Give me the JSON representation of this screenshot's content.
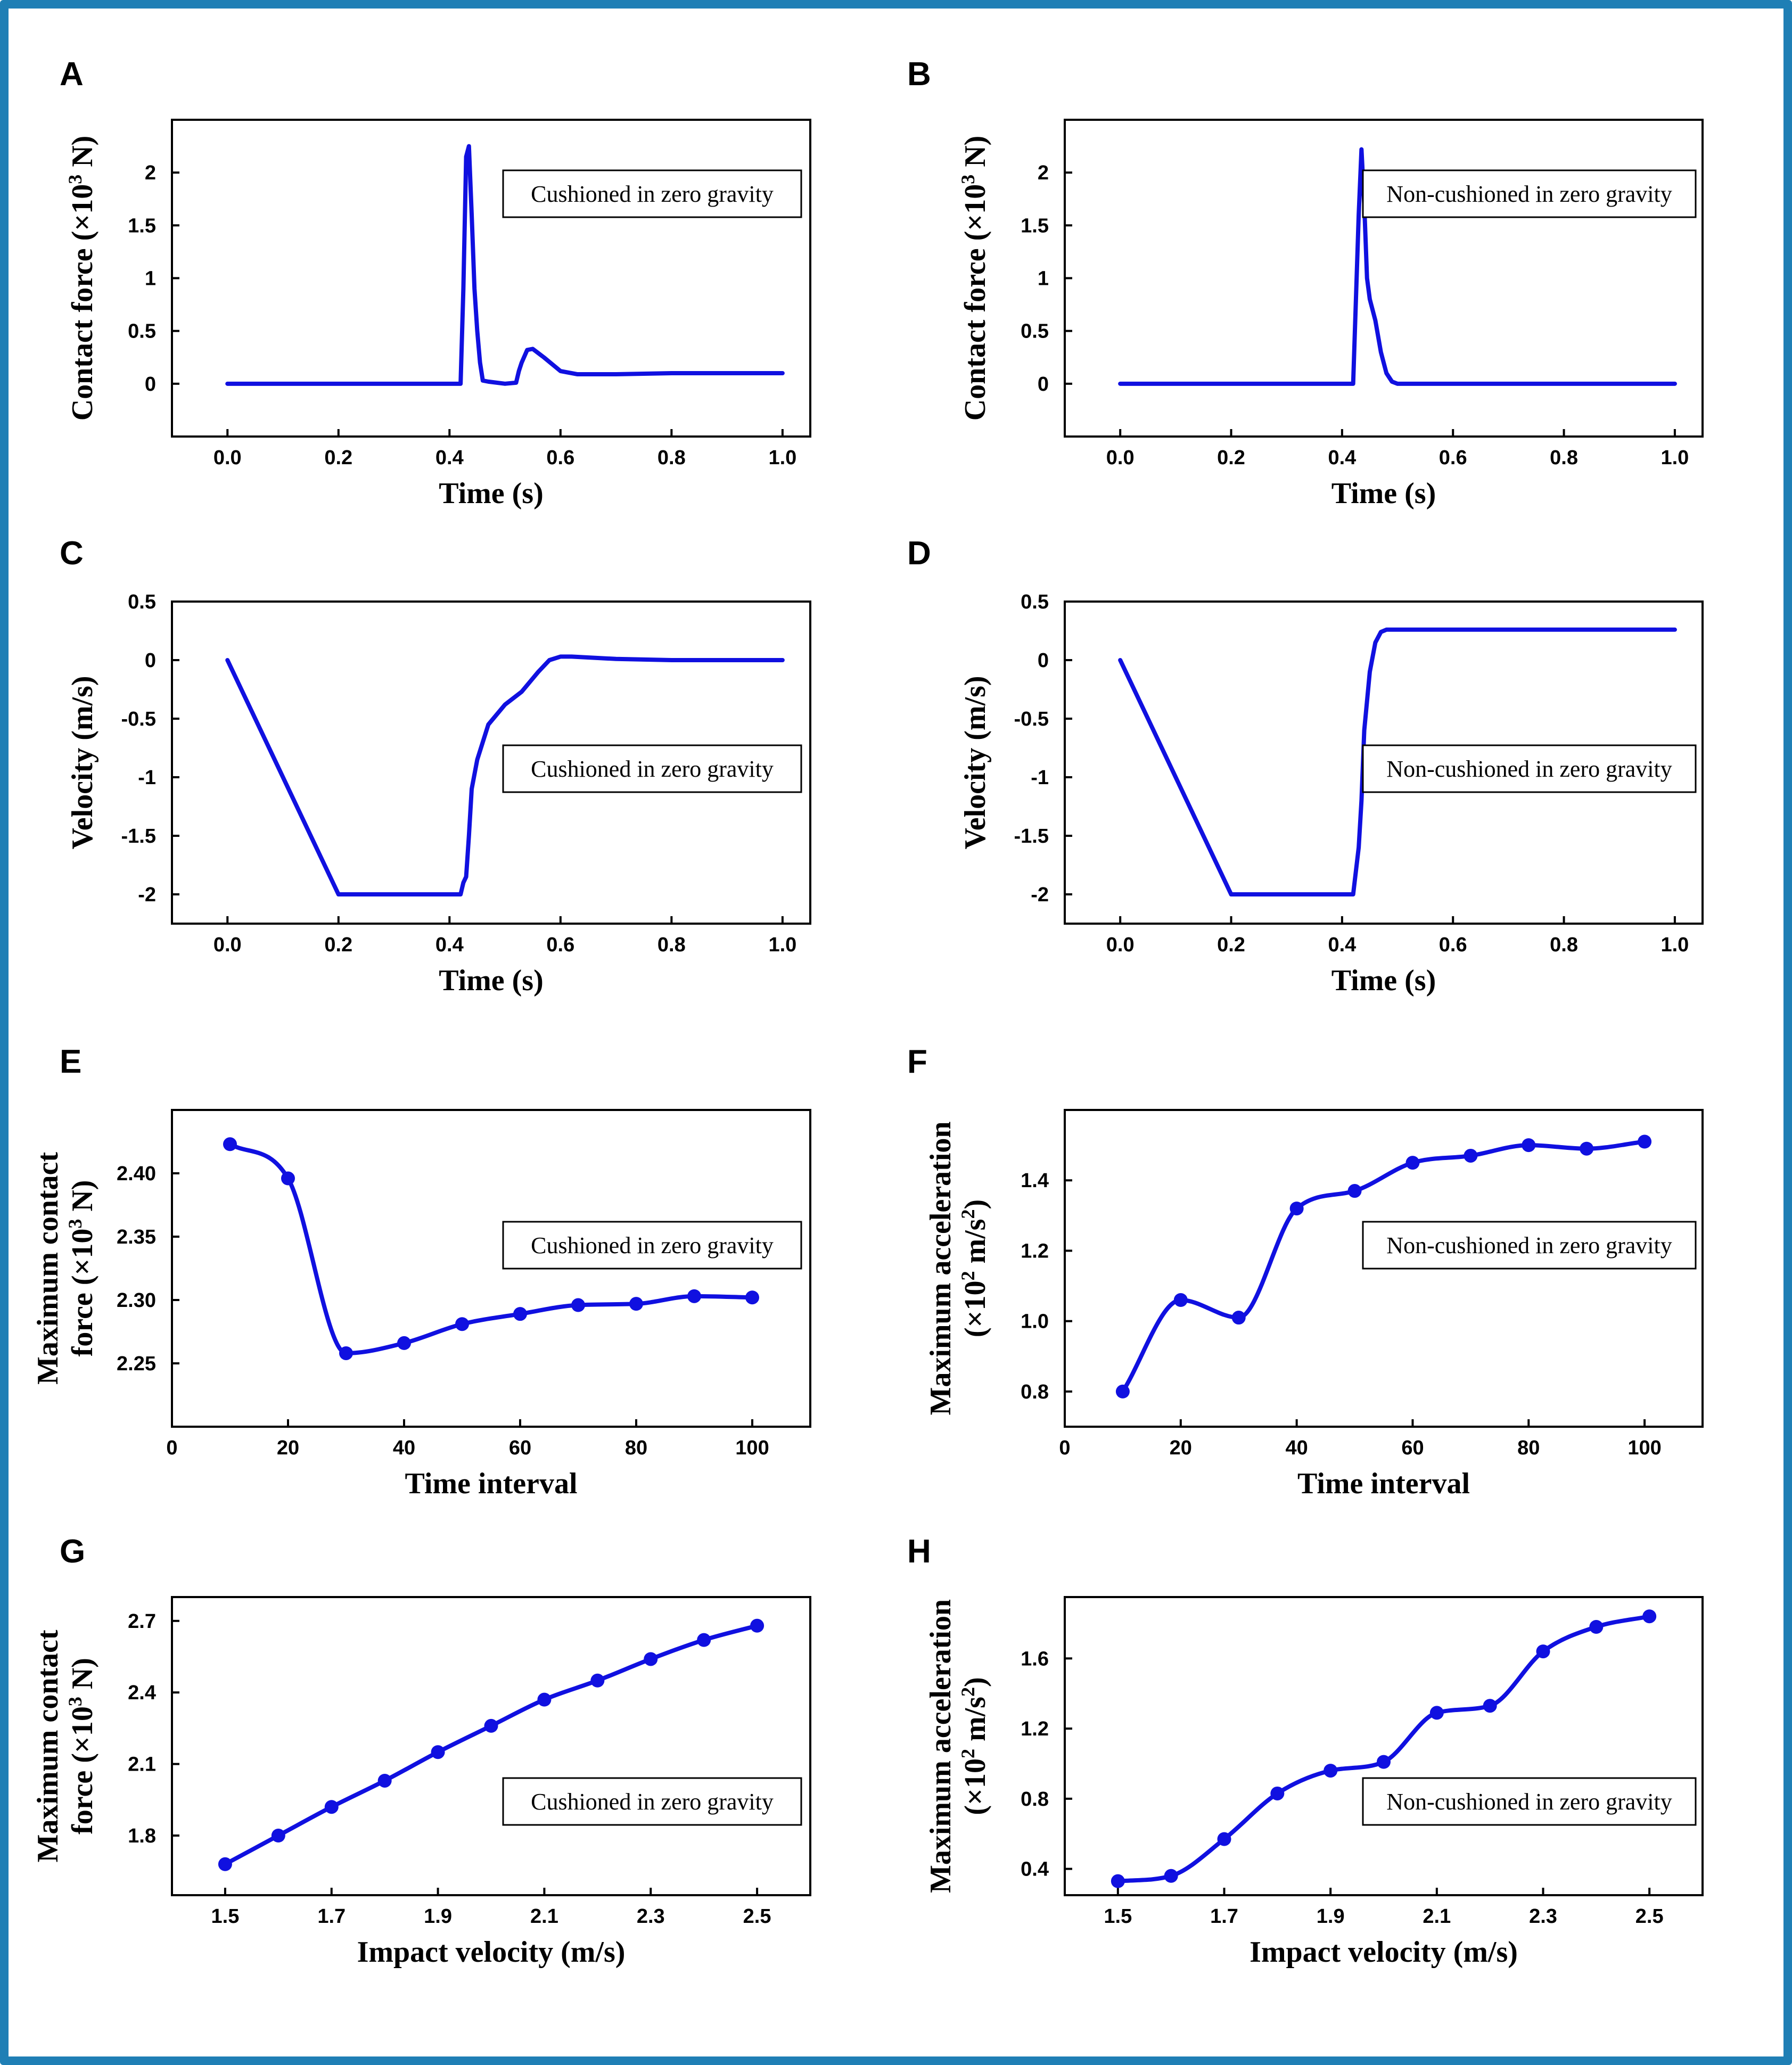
{
  "figure": {
    "border_color": "#1f7fb5",
    "line_color": "#1010e0"
  },
  "chart_data": [
    {
      "panel": "A",
      "type": "line",
      "xlabel": "Time (s)",
      "ylabel": "Contact force (×10",
      "ylabel_sup": "3",
      "ylabel_end": " N)",
      "legend": "Cushioned in zero gravity",
      "xlim": [
        -0.1,
        1.05
      ],
      "ylim": [
        -0.5,
        2.5
      ],
      "xticks": [
        0.0,
        0.2,
        0.4,
        0.6,
        0.8,
        1.0
      ],
      "xtick_labels": [
        "0.0",
        "0.2",
        "0.4",
        "0.6",
        "0.8",
        "1.0"
      ],
      "yticks": [
        0,
        0.5,
        1,
        1.5,
        2
      ],
      "ytick_labels": [
        "0",
        "0.5",
        "1",
        "1.5",
        "2"
      ],
      "series": [
        {
          "name": "Cushioned in zero gravity",
          "x": [
            0.0,
            0.2,
            0.42,
            0.425,
            0.43,
            0.435,
            0.44,
            0.445,
            0.45,
            0.455,
            0.46,
            0.47,
            0.5,
            0.52,
            0.525,
            0.53,
            0.54,
            0.55,
            0.57,
            0.6,
            0.63,
            0.7,
            0.8,
            0.9,
            1.0
          ],
          "y": [
            0,
            0,
            0,
            0.9,
            2.15,
            2.25,
            1.6,
            0.9,
            0.5,
            0.2,
            0.03,
            0.02,
            0.0,
            0.01,
            0.12,
            0.2,
            0.32,
            0.33,
            0.25,
            0.12,
            0.09,
            0.09,
            0.1,
            0.1,
            0.1
          ]
        }
      ]
    },
    {
      "panel": "B",
      "type": "line",
      "xlabel": "Time (s)",
      "ylabel": "Contact force (×10",
      "ylabel_sup": "3",
      "ylabel_end": " N)",
      "legend": "Non-cushioned in zero gravity",
      "xlim": [
        -0.1,
        1.05
      ],
      "ylim": [
        -0.5,
        2.5
      ],
      "xticks": [
        0.0,
        0.2,
        0.4,
        0.6,
        0.8,
        1.0
      ],
      "xtick_labels": [
        "0.0",
        "0.2",
        "0.4",
        "0.6",
        "0.8",
        "1.0"
      ],
      "yticks": [
        0,
        0.5,
        1,
        1.5,
        2
      ],
      "ytick_labels": [
        "0",
        "0.5",
        "1",
        "1.5",
        "2"
      ],
      "series": [
        {
          "name": "Non-cushioned in zero gravity",
          "x": [
            0.0,
            0.42,
            0.43,
            0.435,
            0.44,
            0.445,
            0.45,
            0.46,
            0.47,
            0.48,
            0.49,
            0.5,
            0.6,
            0.8,
            1.0
          ],
          "y": [
            0,
            0,
            1.6,
            2.22,
            1.7,
            1.0,
            0.8,
            0.6,
            0.3,
            0.1,
            0.02,
            0,
            0,
            0,
            0
          ]
        }
      ]
    },
    {
      "panel": "C",
      "type": "line",
      "xlabel": "Time (s)",
      "ylabel": "Velocity  (m/s)",
      "legend": "Cushioned in zero gravity",
      "xlim": [
        -0.1,
        1.05
      ],
      "ylim": [
        -2.25,
        0.5
      ],
      "xticks": [
        0.0,
        0.2,
        0.4,
        0.6,
        0.8,
        1.0
      ],
      "xtick_labels": [
        "0.0",
        "0.2",
        "0.4",
        "0.6",
        "0.8",
        "1.0"
      ],
      "yticks": [
        0.5,
        0,
        -0.5,
        -1,
        -1.5,
        -2
      ],
      "ytick_labels": [
        "0.5",
        "0",
        "-0.5",
        "-1",
        "-1.5",
        "-2"
      ],
      "series": [
        {
          "name": "Cushioned in zero gravity",
          "x": [
            0.0,
            0.2,
            0.42,
            0.425,
            0.43,
            0.435,
            0.44,
            0.45,
            0.47,
            0.5,
            0.53,
            0.56,
            0.58,
            0.6,
            0.62,
            0.7,
            0.8,
            1.0
          ],
          "y": [
            0,
            -2.0,
            -2.0,
            -1.9,
            -1.85,
            -1.5,
            -1.1,
            -0.85,
            -0.55,
            -0.38,
            -0.27,
            -0.1,
            0.0,
            0.03,
            0.03,
            0.01,
            0.0,
            0.0
          ]
        }
      ]
    },
    {
      "panel": "D",
      "type": "line",
      "xlabel": "Time (s)",
      "ylabel": "Velocity  (m/s)",
      "legend": "Non-cushioned in zero gravity",
      "xlim": [
        -0.1,
        1.05
      ],
      "ylim": [
        -2.25,
        0.5
      ],
      "xticks": [
        0.0,
        0.2,
        0.4,
        0.6,
        0.8,
        1.0
      ],
      "xtick_labels": [
        "0.0",
        "0.2",
        "0.4",
        "0.6",
        "0.8",
        "1.0"
      ],
      "yticks": [
        0.5,
        0,
        -0.5,
        -1,
        -1.5,
        -2
      ],
      "ytick_labels": [
        "0.5",
        "0",
        "-0.5",
        "-1",
        "-1.5",
        "-2"
      ],
      "series": [
        {
          "name": "Non-cushioned in zero gravity",
          "x": [
            0.0,
            0.2,
            0.42,
            0.425,
            0.43,
            0.435,
            0.44,
            0.45,
            0.46,
            0.47,
            0.48,
            0.5,
            0.7,
            1.0
          ],
          "y": [
            0,
            -2.0,
            -2.0,
            -1.8,
            -1.6,
            -1.2,
            -0.6,
            -0.1,
            0.15,
            0.24,
            0.26,
            0.26,
            0.26,
            0.26
          ]
        }
      ]
    },
    {
      "panel": "E",
      "type": "line",
      "xlabel": "Time interval",
      "ylabel_line1": "Maximum contact",
      "ylabel_line2": "force  (×10",
      "ylabel_sup": "3",
      "ylabel_end": " N)",
      "legend": "Cushioned in zero gravity",
      "xlim": [
        0,
        110
      ],
      "ylim": [
        2.2,
        2.45
      ],
      "xticks": [
        0,
        20,
        40,
        60,
        80,
        100
      ],
      "xtick_labels": [
        "0",
        "20",
        "40",
        "60",
        "80",
        "100"
      ],
      "yticks": [
        2.25,
        2.3,
        2.35,
        2.4
      ],
      "ytick_labels": [
        "2.25",
        "2.30",
        "2.35",
        "2.40"
      ],
      "series": [
        {
          "name": "Cushioned in zero gravity",
          "x": [
            10,
            20,
            30,
            40,
            50,
            60,
            70,
            80,
            90,
            100
          ],
          "y": [
            2.423,
            2.396,
            2.258,
            2.266,
            2.281,
            2.289,
            2.296,
            2.297,
            2.303,
            2.302
          ]
        }
      ]
    },
    {
      "panel": "F",
      "type": "line",
      "xlabel": "Time interval",
      "ylabel_line1": "Maximum acceleration",
      "ylabel_line2": "(×10",
      "ylabel_sup": "2",
      "ylabel_mid": " m/s",
      "ylabel_sup2": "2",
      "ylabel_end": ")",
      "legend": "Non-cushioned in zero gravity",
      "xlim": [
        0,
        110
      ],
      "ylim": [
        0.7,
        1.6
      ],
      "xticks": [
        0,
        20,
        40,
        60,
        80,
        100
      ],
      "xtick_labels": [
        "0",
        "20",
        "40",
        "60",
        "80",
        "100"
      ],
      "yticks": [
        0.8,
        1.0,
        1.2,
        1.4
      ],
      "ytick_labels": [
        "0.8",
        "1.0",
        "1.2",
        "1.4"
      ],
      "series": [
        {
          "name": "Non-cushioned in zero gravity",
          "x": [
            10,
            20,
            30,
            40,
            50,
            60,
            70,
            80,
            90,
            100
          ],
          "y": [
            0.8,
            1.06,
            1.01,
            1.32,
            1.37,
            1.45,
            1.47,
            1.5,
            1.49,
            1.51
          ]
        }
      ]
    },
    {
      "panel": "G",
      "type": "line",
      "xlabel": "Impact velocity (m/s)",
      "ylabel_line1": "Maximum contact",
      "ylabel_line2": "force  (×10",
      "ylabel_sup": "3",
      "ylabel_end": " N)",
      "legend": "Cushioned in zero gravity",
      "xlim": [
        1.4,
        2.6
      ],
      "ylim": [
        1.55,
        2.8
      ],
      "xticks": [
        1.5,
        1.7,
        1.9,
        2.1,
        2.3,
        2.5
      ],
      "xtick_labels": [
        "1.5",
        "1.7",
        "1.9",
        "2.1",
        "2.3",
        "2.5"
      ],
      "yticks": [
        1.8,
        2.1,
        2.4,
        2.7
      ],
      "ytick_labels": [
        "1.8",
        "2.1",
        "2.4",
        "2.7"
      ],
      "series": [
        {
          "name": "Cushioned in zero gravity",
          "x": [
            1.5,
            1.6,
            1.7,
            1.8,
            1.9,
            2.0,
            2.1,
            2.2,
            2.3,
            2.4,
            2.5
          ],
          "y": [
            1.68,
            1.8,
            1.92,
            2.03,
            2.15,
            2.26,
            2.37,
            2.45,
            2.54,
            2.62,
            2.68
          ]
        }
      ]
    },
    {
      "panel": "H",
      "type": "line",
      "xlabel": "Impact velocity (m/s)",
      "ylabel_line1": "Maximum acceleration",
      "ylabel_line2": "(×10",
      "ylabel_sup": "2",
      "ylabel_mid": " m/s",
      "ylabel_sup2": "2",
      "ylabel_end": ")",
      "legend": "Non-cushioned in zero gravity",
      "xlim": [
        1.4,
        2.6
      ],
      "ylim": [
        0.25,
        1.95
      ],
      "xticks": [
        1.5,
        1.7,
        1.9,
        2.1,
        2.3,
        2.5
      ],
      "xtick_labels": [
        "1.5",
        "1.7",
        "1.9",
        "2.1",
        "2.3",
        "2.5"
      ],
      "yticks": [
        0.4,
        0.8,
        1.2,
        1.6
      ],
      "ytick_labels": [
        "0.4",
        "0.8",
        "1.2",
        "1.6"
      ],
      "series": [
        {
          "name": "Non-cushioned in zero gravity",
          "x": [
            1.5,
            1.6,
            1.7,
            1.8,
            1.9,
            2.0,
            2.1,
            2.2,
            2.3,
            2.4,
            2.5
          ],
          "y": [
            0.33,
            0.36,
            0.57,
            0.83,
            0.96,
            1.01,
            1.29,
            1.33,
            1.64,
            1.78,
            1.84
          ]
        }
      ]
    }
  ]
}
